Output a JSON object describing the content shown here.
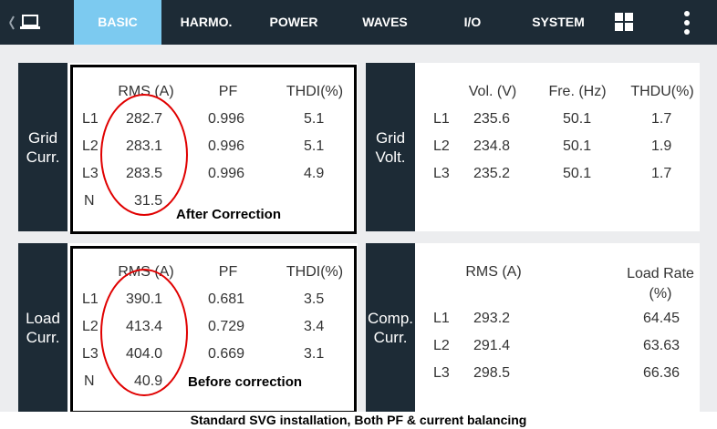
{
  "nav": {
    "tabs": [
      "BASIC",
      "HARMO.",
      "POWER",
      "WAVES",
      "I/O",
      "SYSTEM"
    ],
    "active": "BASIC",
    "icons": {
      "left": "laptop-icon",
      "grid": "grid-icon",
      "menu": "more-vert-icon"
    }
  },
  "grid_curr": {
    "label_line1": "Grid",
    "label_line2": "Curr.",
    "headers": {
      "rms": "RMS (A)",
      "pf": "PF",
      "thd": "THDI(%)"
    },
    "rows": [
      {
        "phase": "L1",
        "rms": "282.7",
        "pf": "0.996",
        "thd": "5.1"
      },
      {
        "phase": "L2",
        "rms": "283.1",
        "pf": "0.996",
        "thd": "5.1"
      },
      {
        "phase": "L3",
        "rms": "283.5",
        "pf": "0.996",
        "thd": "4.9"
      },
      {
        "phase": "N",
        "rms": "31.5",
        "pf": "",
        "thd": ""
      }
    ],
    "note": "After Correction"
  },
  "grid_volt": {
    "label_line1": "Grid",
    "label_line2": "Volt.",
    "headers": {
      "vol": "Vol. (V)",
      "fre": "Fre. (Hz)",
      "thdu": "THDU(%)"
    },
    "rows": [
      {
        "phase": "L1",
        "vol": "235.6",
        "fre": "50.1",
        "thdu": "1.7"
      },
      {
        "phase": "L2",
        "vol": "234.8",
        "fre": "50.1",
        "thdu": "1.9"
      },
      {
        "phase": "L3",
        "vol": "235.2",
        "fre": "50.1",
        "thdu": "1.7"
      }
    ]
  },
  "load_curr": {
    "label_line1": "Load",
    "label_line2": "Curr.",
    "headers": {
      "rms": "RMS (A)",
      "pf": "PF",
      "thd": "THDI(%)"
    },
    "rows": [
      {
        "phase": "L1",
        "rms": "390.1",
        "pf": "0.681",
        "thd": "3.5"
      },
      {
        "phase": "L2",
        "rms": "413.4",
        "pf": "0.729",
        "thd": "3.4"
      },
      {
        "phase": "L3",
        "rms": "404.0",
        "pf": "0.669",
        "thd": "3.1"
      },
      {
        "phase": "N",
        "rms": "40.9",
        "pf": "",
        "thd": ""
      }
    ],
    "note": "Before correction"
  },
  "comp_curr": {
    "label_line1": "Comp.",
    "label_line2": "Curr.",
    "headers": {
      "rms": "RMS (A)",
      "load_line1": "Load Rate",
      "load_line2": "(%)"
    },
    "rows": [
      {
        "phase": "L1",
        "rms": "293.2",
        "rate": "64.45"
      },
      {
        "phase": "L2",
        "rms": "291.4",
        "rate": "63.63"
      },
      {
        "phase": "L3",
        "rms": "298.5",
        "rate": "66.36"
      }
    ]
  },
  "caption": "Standard SVG installation, Both PF & current balancing",
  "colors": {
    "nav_bg": "#1d2b36",
    "active_tab": "#7ccaf0",
    "circle": "#e00000"
  }
}
